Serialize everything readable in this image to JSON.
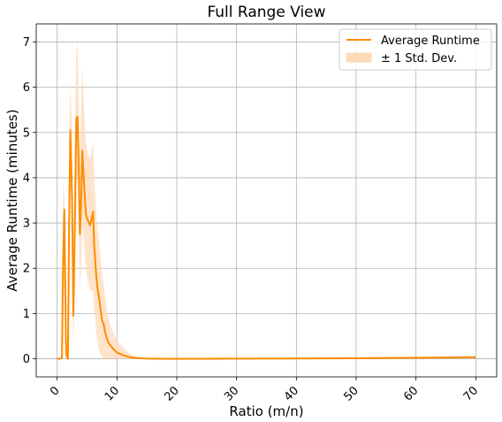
{
  "chart_data": {
    "type": "line",
    "title": "Full Range View",
    "xlabel": "Ratio (m/n)",
    "ylabel": "Average Runtime (minutes)",
    "xlim": [
      -3.5,
      73.5
    ],
    "ylim": [
      -0.4,
      7.4
    ],
    "xticks": [
      0,
      10,
      20,
      30,
      40,
      50,
      60,
      70
    ],
    "yticks": [
      0,
      1,
      2,
      3,
      4,
      5,
      6,
      7
    ],
    "xtick_rotation": 45,
    "grid": true,
    "legend_position": "top-right",
    "colors": {
      "line": "#ff8c00",
      "band": "#ffdab9",
      "grid": "#b0b0b0",
      "frame": "#000000"
    },
    "series": [
      {
        "name": "Average Runtime",
        "x": [
          0,
          0.5,
          0.8,
          1.0,
          1.2,
          1.5,
          1.8,
          2.0,
          2.2,
          2.5,
          2.7,
          3.0,
          3.2,
          3.4,
          3.6,
          3.8,
          4.0,
          4.2,
          4.5,
          4.8,
          5.0,
          5.5,
          6.0,
          6.2,
          6.5,
          6.7,
          7.0,
          7.2,
          7.5,
          7.8,
          8.0,
          8.3,
          8.6,
          9.0,
          9.5,
          10.0,
          11.0,
          12.0,
          13.0,
          14.0,
          15.0,
          17.0,
          20.0,
          25.0,
          30.0,
          40.0,
          50.0,
          60.0,
          70.0
        ],
        "y": [
          0,
          0,
          0.02,
          2.2,
          3.3,
          0.1,
          0,
          3.0,
          5.05,
          3.5,
          0.95,
          3.3,
          5.3,
          5.35,
          4.3,
          2.75,
          3.4,
          4.6,
          3.85,
          3.2,
          3.1,
          2.95,
          3.25,
          2.5,
          1.9,
          1.6,
          1.35,
          1.15,
          0.85,
          0.75,
          0.6,
          0.45,
          0.35,
          0.28,
          0.2,
          0.14,
          0.08,
          0.04,
          0.02,
          0.01,
          0.005,
          0.002,
          0.001,
          0.002,
          0.003,
          0.006,
          0.012,
          0.022,
          0.035
        ]
      },
      {
        "name": "± 1 Std. Dev.",
        "x": [
          0,
          0.5,
          0.8,
          1.0,
          1.2,
          1.5,
          1.8,
          2.0,
          2.2,
          2.5,
          2.7,
          3.0,
          3.2,
          3.4,
          3.6,
          3.8,
          4.0,
          4.2,
          4.5,
          4.8,
          5.0,
          5.5,
          6.0,
          6.2,
          6.5,
          6.7,
          7.0,
          7.2,
          7.5,
          7.8,
          8.0,
          8.3,
          8.6,
          9.0,
          9.5,
          10.0,
          11.0,
          12.0,
          13.0,
          14.0,
          15.0,
          17.0,
          20.0,
          25.0,
          30.0,
          40.0,
          50.0,
          60.0,
          70.0
        ],
        "lower": [
          0,
          0,
          0,
          0.8,
          1.8,
          0,
          0,
          1.5,
          3.8,
          2.0,
          0.2,
          1.5,
          3.8,
          4.0,
          3.0,
          1.5,
          2.0,
          3.0,
          2.5,
          2.0,
          1.8,
          1.5,
          1.5,
          1.1,
          0.6,
          0.4,
          0.2,
          0.1,
          0.05,
          0,
          0,
          0,
          0,
          0,
          0,
          0,
          0,
          0,
          0,
          0,
          0,
          0,
          0,
          0,
          0,
          0,
          0,
          0.005,
          0.015
        ],
        "upper": [
          0,
          0,
          0.1,
          3.9,
          3.6,
          0.4,
          0.3,
          4.8,
          6.15,
          4.9,
          1.9,
          5.3,
          6.8,
          7.0,
          6.0,
          4.5,
          5.5,
          6.5,
          5.5,
          4.8,
          4.6,
          4.4,
          4.8,
          4.0,
          3.3,
          2.9,
          2.6,
          2.3,
          1.9,
          1.6,
          1.4,
          1.1,
          0.9,
          0.7,
          0.55,
          0.4,
          0.25,
          0.12,
          0.06,
          0.03,
          0.015,
          0.006,
          0.003,
          0.004,
          0.006,
          0.012,
          0.024,
          0.04,
          0.06
        ]
      }
    ]
  }
}
